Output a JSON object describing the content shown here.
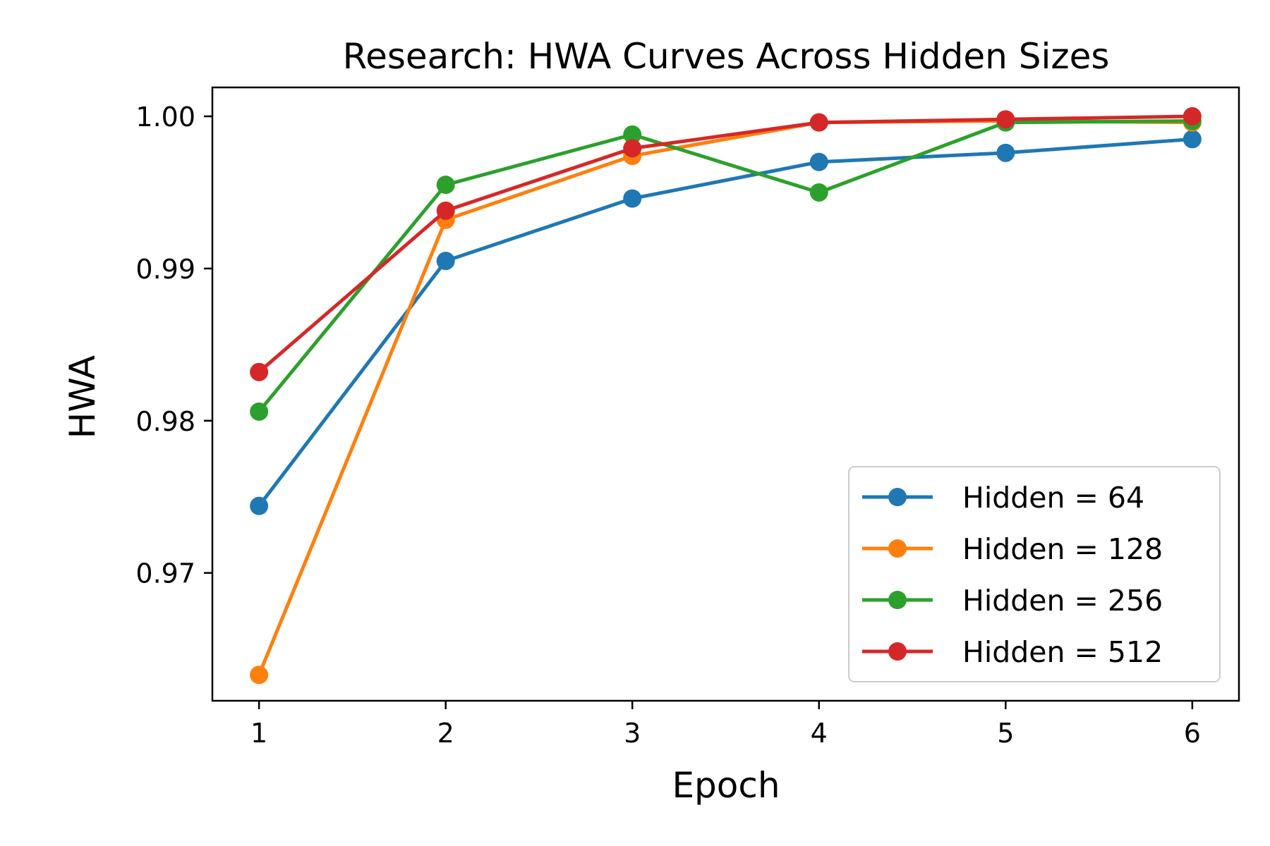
{
  "chart_data": {
    "type": "line",
    "title": "Research: HWA Curves Across Hidden Sizes",
    "xlabel": "Epoch",
    "ylabel": "HWA",
    "x": [
      1,
      2,
      3,
      4,
      5,
      6
    ],
    "x_ticks": [
      "1",
      "2",
      "3",
      "4",
      "5",
      "6"
    ],
    "y_ticks": [
      "0.97",
      "0.98",
      "0.99",
      "1.00"
    ],
    "y_tick_values": [
      0.97,
      0.98,
      0.99,
      1.0
    ],
    "xlim": [
      0.75,
      6.25
    ],
    "ylim": [
      0.9616,
      1.0019
    ],
    "grid": false,
    "legend_position": "lower right",
    "series": [
      {
        "name": "Hidden = 64",
        "color": "#1f77b4",
        "values": [
          0.9744,
          0.9905,
          0.9946,
          0.997,
          0.9976,
          0.9985
        ]
      },
      {
        "name": "Hidden = 128",
        "color": "#ff7f0e",
        "values": [
          0.9633,
          0.9932,
          0.9974,
          0.9996,
          0.9997,
          0.9996
        ]
      },
      {
        "name": "Hidden = 256",
        "color": "#2ca02c",
        "values": [
          0.9806,
          0.9955,
          0.9988,
          0.995,
          0.9996,
          0.9997
        ]
      },
      {
        "name": "Hidden = 512",
        "color": "#d62728",
        "values": [
          0.9832,
          0.9938,
          0.9979,
          0.9996,
          0.9998,
          1.0
        ]
      }
    ]
  }
}
